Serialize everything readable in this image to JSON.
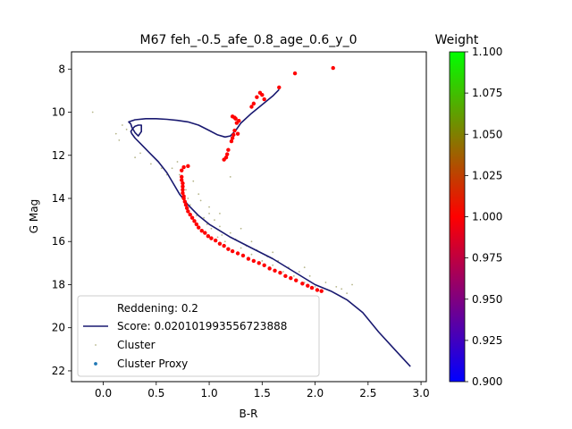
{
  "chart_data": {
    "type": "scatter",
    "title": "M67 feh_-0.5_afe_0.8_age_0.6_y_0",
    "xlabel": "B-R",
    "ylabel": "G Mag",
    "xlim": [
      -0.3,
      3.05
    ],
    "ylim": [
      22.5,
      7.2
    ],
    "y_inverted": true,
    "xticks": [
      0.0,
      0.5,
      1.0,
      1.5,
      2.0,
      2.5,
      3.0
    ],
    "xtick_labels": [
      "0.0",
      "0.5",
      "1.0",
      "1.5",
      "2.0",
      "2.5",
      "3.0"
    ],
    "yticks": [
      8,
      10,
      12,
      14,
      16,
      18,
      20,
      22
    ],
    "ytick_labels": [
      "8",
      "10",
      "12",
      "14",
      "16",
      "18",
      "20",
      "22"
    ],
    "grid": false,
    "legend_position": "lower-left",
    "legend": {
      "reddening": "Reddening: 0.2",
      "score": "Score: 0.020101993556723888",
      "cluster": "Cluster",
      "proxy": "Cluster Proxy"
    },
    "series": [
      {
        "name": "Score: 0.020101993556723888",
        "kind": "isochrone-line",
        "color": "#191970",
        "x": [
          2.9,
          2.75,
          2.6,
          2.45,
          2.3,
          2.15,
          2.0,
          1.8,
          1.6,
          1.4,
          1.2,
          1.0,
          0.9,
          0.8,
          0.72,
          0.66,
          0.6,
          0.52,
          0.44,
          0.36,
          0.3,
          0.27,
          0.26,
          0.28,
          0.3,
          0.33,
          0.36,
          0.36,
          0.33,
          0.3,
          0.27,
          0.26,
          0.24,
          0.3,
          0.4,
          0.5,
          0.6,
          0.7,
          0.8,
          0.9,
          1.0,
          1.08,
          1.15,
          1.2,
          1.25,
          1.3,
          1.4,
          1.5,
          1.6,
          1.66
        ],
        "y": [
          21.8,
          21.0,
          20.2,
          19.3,
          18.7,
          18.3,
          18.0,
          17.4,
          16.8,
          16.3,
          15.8,
          15.2,
          14.8,
          14.3,
          13.8,
          13.3,
          12.8,
          12.3,
          11.9,
          11.5,
          11.2,
          11.0,
          10.9,
          10.75,
          10.65,
          10.6,
          10.6,
          10.9,
          11.1,
          10.95,
          10.7,
          10.55,
          10.45,
          10.35,
          10.3,
          10.3,
          10.33,
          10.38,
          10.45,
          10.6,
          10.85,
          11.05,
          11.15,
          11.1,
          10.85,
          10.5,
          10.05,
          9.65,
          9.25,
          8.95
        ]
      },
      {
        "name": "Cluster Proxy",
        "kind": "weighted-points",
        "color": "#ff0000",
        "x": [
          0.74,
          0.74,
          0.75,
          0.75,
          0.75,
          0.75,
          0.76,
          0.76,
          0.77,
          0.78,
          0.79,
          0.8,
          0.82,
          0.84,
          0.86,
          0.88,
          0.9,
          0.93,
          0.96,
          0.99,
          1.02,
          1.06,
          1.1,
          1.14,
          1.18,
          1.22,
          1.27,
          1.32,
          1.37,
          1.42,
          1.47,
          1.52,
          1.57,
          1.62,
          1.67,
          1.72,
          1.77,
          1.82,
          1.88,
          1.93,
          1.97,
          2.02,
          2.06,
          0.76,
          0.8,
          0.74,
          1.22,
          1.24,
          1.25,
          1.26,
          1.24,
          1.23,
          1.22,
          1.21,
          1.18,
          1.17,
          1.16,
          1.14,
          1.28,
          1.27,
          1.4,
          1.42,
          1.45,
          1.48,
          1.5,
          1.52,
          1.66,
          1.81,
          2.17
        ],
        "y": [
          13.0,
          13.15,
          13.3,
          13.45,
          13.6,
          13.75,
          13.9,
          14.0,
          14.15,
          14.3,
          14.45,
          14.6,
          14.75,
          14.9,
          15.05,
          15.2,
          15.35,
          15.5,
          15.6,
          15.75,
          15.85,
          15.95,
          16.1,
          16.2,
          16.35,
          16.45,
          16.55,
          16.65,
          16.8,
          16.9,
          17.0,
          17.1,
          17.25,
          17.35,
          17.45,
          17.6,
          17.7,
          17.8,
          17.95,
          18.05,
          18.15,
          18.25,
          18.3,
          12.55,
          12.5,
          12.7,
          10.2,
          10.25,
          10.3,
          10.5,
          10.85,
          11.05,
          11.2,
          11.35,
          11.75,
          11.95,
          12.1,
          12.2,
          10.4,
          11.0,
          9.75,
          9.6,
          9.3,
          9.1,
          9.2,
          9.4,
          8.85,
          8.2,
          7.95
        ]
      },
      {
        "name": "Cluster",
        "kind": "small-points",
        "color": "#b5b58a",
        "x": [
          -0.1,
          0.12,
          0.15,
          0.18,
          0.22,
          0.3,
          0.35,
          0.45,
          0.55,
          0.6,
          0.65,
          0.7,
          0.72,
          0.78,
          0.82,
          0.85,
          0.88,
          0.92,
          0.95,
          0.98,
          1.0,
          1.02,
          1.05,
          1.08,
          1.1,
          1.12,
          1.15,
          1.2,
          1.25,
          1.3,
          1.35,
          1.4,
          1.45,
          1.5,
          1.55,
          1.6,
          1.65,
          1.7,
          1.75,
          1.8,
          1.85,
          1.9,
          1.95,
          2.0,
          2.1,
          2.2,
          2.3,
          0.9,
          1.0,
          1.1,
          1.3,
          1.2,
          0.8,
          1.4,
          1.6,
          1.9,
          2.25,
          2.35
        ],
        "y": [
          10.0,
          11.0,
          11.3,
          10.6,
          10.8,
          12.1,
          11.9,
          12.4,
          12.6,
          12.9,
          12.6,
          12.3,
          12.9,
          13.6,
          14.3,
          13.2,
          14.8,
          14.1,
          14.9,
          15.2,
          14.7,
          15.4,
          15.0,
          15.8,
          15.3,
          15.7,
          16.0,
          15.6,
          15.9,
          16.3,
          16.2,
          16.6,
          16.4,
          16.9,
          16.7,
          17.1,
          16.9,
          17.4,
          17.2,
          17.6,
          17.4,
          17.9,
          17.6,
          18.1,
          17.9,
          18.1,
          18.4,
          13.8,
          14.4,
          14.7,
          15.4,
          13.0,
          14.0,
          16.0,
          16.5,
          17.2,
          18.2,
          18.0
        ]
      }
    ],
    "colorbar": {
      "title": "Weight",
      "vmin": 0.9,
      "vmax": 1.1,
      "ticks": [
        0.9,
        0.925,
        0.95,
        0.975,
        1.0,
        1.025,
        1.05,
        1.075,
        1.1
      ],
      "tick_labels": [
        "0.900",
        "0.925",
        "0.950",
        "0.975",
        "1.000",
        "1.025",
        "1.050",
        "1.075",
        "1.100"
      ],
      "colors": [
        "#0000ff",
        "#ff0000",
        "#00ff00"
      ]
    }
  }
}
